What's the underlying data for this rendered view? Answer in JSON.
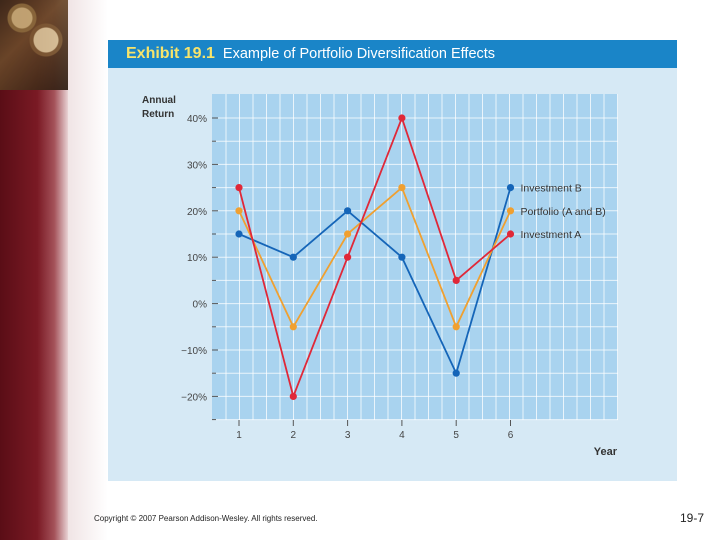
{
  "exhibit_label": "Exhibit 19.1",
  "exhibit_title": "Example of Portfolio Diversification Effects",
  "footer": {
    "copyright": "Copyright © 2007 Pearson Addison-Wesley. All rights reserved.",
    "page": "19-7"
  },
  "colors": {
    "title_bar": "#1a85c8",
    "plot_bg": "#a9d3ef",
    "series_b": "#1565b8",
    "series_portfolio": "#f0a030",
    "series_a": "#e02838"
  },
  "chart_data": {
    "type": "line",
    "x": [
      1,
      2,
      3,
      4,
      5,
      6
    ],
    "x_tick_labels": [
      "1",
      "2",
      "3",
      "4",
      "5",
      "6"
    ],
    "xlabel": "Year",
    "ylabel_lines": [
      "Annual",
      "Return"
    ],
    "ylim": [
      -25,
      40
    ],
    "y_ticks": [
      40,
      30,
      20,
      10,
      0,
      -10,
      -20
    ],
    "y_tick_labels": [
      "40%",
      "30%",
      "20%",
      "10%",
      "0%",
      "−10%",
      "−20%"
    ],
    "grid": true,
    "legend_position": "right",
    "series": [
      {
        "name": "Investment B",
        "color": "#1565b8",
        "values": [
          15,
          10,
          20,
          10,
          -15,
          25
        ]
      },
      {
        "name": "Portfolio (A and B)",
        "color": "#f0a030",
        "values": [
          20,
          -5,
          15,
          25,
          -5,
          20
        ]
      },
      {
        "name": "Investment A",
        "color": "#e02838",
        "values": [
          25,
          -20,
          10,
          40,
          5,
          15
        ]
      }
    ]
  }
}
